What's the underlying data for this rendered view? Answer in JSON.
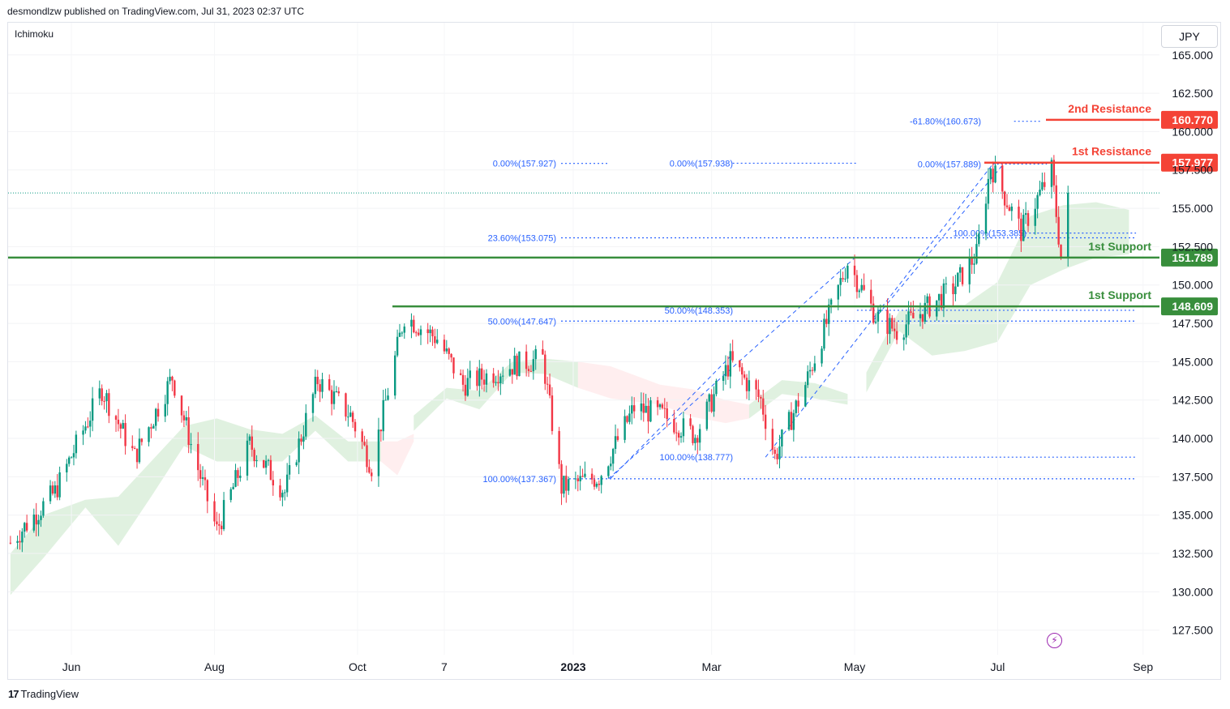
{
  "header": {
    "published_by": "desmondlzw published on TradingView.com, Jul 31, 2023 02:37 UTC"
  },
  "indicator_label": "Ichimoku",
  "currency_button": "JPY",
  "footer": {
    "brand": "TradingView",
    "logo_mark": "17"
  },
  "colors": {
    "up": "#089981",
    "down": "#f23645",
    "support": "#388e3c",
    "resistance": "#f44336",
    "fib": "#2962ff",
    "cloud_bull": "#a5d6a7",
    "cloud_bear": "#ffcdd2"
  },
  "chart_data": {
    "type": "candlestick",
    "title": "",
    "y_axis": {
      "ylim": [
        125.9,
        167.1
      ],
      "side": "right",
      "ticks": [
        "165.000",
        "162.500",
        "160.000",
        "157.500",
        "155.000",
        "152.500",
        "150.000",
        "147.500",
        "145.000",
        "142.500",
        "140.000",
        "137.500",
        "135.000",
        "132.500",
        "130.000",
        "127.500"
      ]
    },
    "x_axis": {
      "ticks": [
        "Jun",
        "Aug",
        "Oct",
        "7",
        "2023",
        "Mar",
        "May",
        "Jul",
        "Sep"
      ]
    },
    "last_price": 156.0,
    "levels": [
      {
        "label": "2nd Resistance",
        "price": "160.770",
        "kind": "resistance"
      },
      {
        "label": "1st Resistance",
        "price": "157.977",
        "kind": "resistance"
      },
      {
        "label": "1st Support",
        "price": "151.789",
        "kind": "support"
      },
      {
        "label": "1st Support",
        "price": "148.609",
        "kind": "support"
      }
    ],
    "fib_labels": [
      {
        "text": "0.00%(157.927)",
        "price": 157.927
      },
      {
        "text": "0.00%(157.938)",
        "price": 157.938
      },
      {
        "text": "0.00%(157.889)",
        "price": 157.889
      },
      {
        "text": "-61.80%(160.673)",
        "price": 160.673
      },
      {
        "text": "23.60%(153.075)",
        "price": 153.075
      },
      {
        "text": "100.00%(153.385)",
        "price": 153.385
      },
      {
        "text": "50.00%(148.353)",
        "price": 148.353
      },
      {
        "text": "50.00%(147.647)",
        "price": 147.647
      },
      {
        "text": "100.00%(138.777)",
        "price": 138.777
      },
      {
        "text": "100.00%(137.367)",
        "price": 137.367
      }
    ],
    "series": [
      {
        "name": "",
        "anchors": [
          [
            "2022-05-06",
            133.2
          ],
          [
            "2022-05-25",
            136.5
          ],
          [
            "2022-06-14",
            143.2
          ],
          [
            "2022-06-28",
            138.8
          ],
          [
            "2022-07-14",
            144.0
          ],
          [
            "2022-07-25",
            138.0
          ],
          [
            "2022-08-02",
            134.0
          ],
          [
            "2022-08-16",
            139.6
          ],
          [
            "2022-08-31",
            136.5
          ],
          [
            "2022-09-14",
            143.8
          ],
          [
            "2022-09-28",
            141.5
          ],
          [
            "2022-10-07",
            138.2
          ],
          [
            "2022-10-21",
            148.0
          ],
          [
            "2022-11-04",
            146.5
          ],
          [
            "2022-11-15",
            143.5
          ],
          [
            "2022-12-07",
            144.8
          ],
          [
            "2022-12-19",
            145.2
          ],
          [
            "2022-12-27",
            136.8
          ],
          [
            "2023-01-12",
            137.5
          ],
          [
            "2023-01-27",
            142.0
          ],
          [
            "2023-02-08",
            141.5
          ],
          [
            "2023-02-22",
            140.2
          ],
          [
            "2023-03-09",
            145.0
          ],
          [
            "2023-03-22",
            142.5
          ],
          [
            "2023-03-28",
            138.8
          ],
          [
            "2023-04-10",
            143.5
          ],
          [
            "2023-04-28",
            151.5
          ],
          [
            "2023-05-10",
            148.0
          ],
          [
            "2023-05-19",
            147.0
          ],
          [
            "2023-06-12",
            149.8
          ],
          [
            "2023-06-22",
            152.0
          ],
          [
            "2023-06-28",
            157.8
          ],
          [
            "2023-07-11",
            153.5
          ],
          [
            "2023-07-24",
            157.5
          ],
          [
            "2023-07-28",
            151.8
          ],
          [
            "2023-07-31",
            156.0
          ]
        ]
      }
    ],
    "cloud": [
      [
        [
          "2022-05-06",
          129.8,
          132.5
        ],
        [
          "2022-05-20",
          132.2,
          135.0
        ],
        [
          "2022-06-07",
          135.5,
          136.0
        ],
        [
          "2022-06-21",
          133.0,
          136.2
        ],
        [
          "2022-07-05",
          136.2,
          138.5
        ],
        [
          "2022-07-19",
          139.5,
          140.8
        ],
        [
          "2022-08-02",
          138.5,
          141.3
        ],
        [
          "2022-08-16",
          138.5,
          140.6
        ],
        [
          "2022-08-30",
          138.5,
          140.3
        ],
        [
          "2022-09-13",
          140.5,
          141.5
        ],
        [
          "2022-09-27",
          138.5,
          139.8
        ],
        [
          "2022-10-11",
          138.5,
          139.8
        ]
      ],
      [
        [
          "2022-10-25",
          140.5,
          141.5
        ],
        [
          "2022-11-08",
          142.6,
          143.3
        ],
        [
          "2022-11-22",
          141.9,
          143.1
        ],
        [
          "2022-12-06",
          144.3,
          145.0
        ],
        [
          "2022-12-20",
          144.2,
          145.2
        ],
        [
          "2023-01-03",
          143.3,
          145.0
        ]
      ],
      [
        [
          "2023-03-17",
          141.3,
          142.2
        ],
        [
          "2023-03-31",
          142.9,
          143.8
        ],
        [
          "2023-04-14",
          142.6,
          143.6
        ],
        [
          "2023-04-28",
          142.2,
          142.9
        ]
      ],
      [
        [
          "2023-05-06",
          143.0,
          144.3
        ],
        [
          "2023-05-20",
          147.0,
          148.3
        ],
        [
          "2023-06-03",
          145.4,
          148.7
        ],
        [
          "2023-06-17",
          145.7,
          148.7
        ],
        [
          "2023-07-01",
          146.3,
          150.2
        ],
        [
          "2023-07-15",
          150.0,
          154.5
        ],
        [
          "2023-07-29",
          151.0,
          155.2
        ],
        [
          "2023-08-12",
          151.8,
          155.4
        ],
        [
          "2023-08-26",
          152.0,
          154.9
        ]
      ]
    ],
    "cloud_bear": [
      [
        [
          "2022-10-11",
          139.8,
          138.5
        ],
        [
          "2022-10-18",
          139.8,
          137.6
        ],
        [
          "2022-10-25",
          139.8,
          140.3
        ]
      ],
      [
        [
          "2023-01-03",
          145.0,
          143.3
        ],
        [
          "2023-01-17",
          144.7,
          142.6
        ],
        [
          "2023-02-07",
          143.5,
          142.2
        ],
        [
          "2023-02-21",
          143.2,
          141.4
        ],
        [
          "2023-03-07",
          142.5,
          141.0
        ],
        [
          "2023-03-17",
          142.2,
          141.3
        ]
      ]
    ],
    "fib_pairs": [
      [
        "2023-01-16",
        137.367,
        "2023-05-02",
        151.9
      ],
      [
        "2023-03-24",
        138.777,
        "2023-06-29",
        157.9
      ],
      [
        "2023-01-17",
        137.4,
        "2023-03-10",
        145.5
      ],
      [
        "2023-05-09",
        147.7,
        "2023-07-03",
        157.8
      ]
    ]
  }
}
